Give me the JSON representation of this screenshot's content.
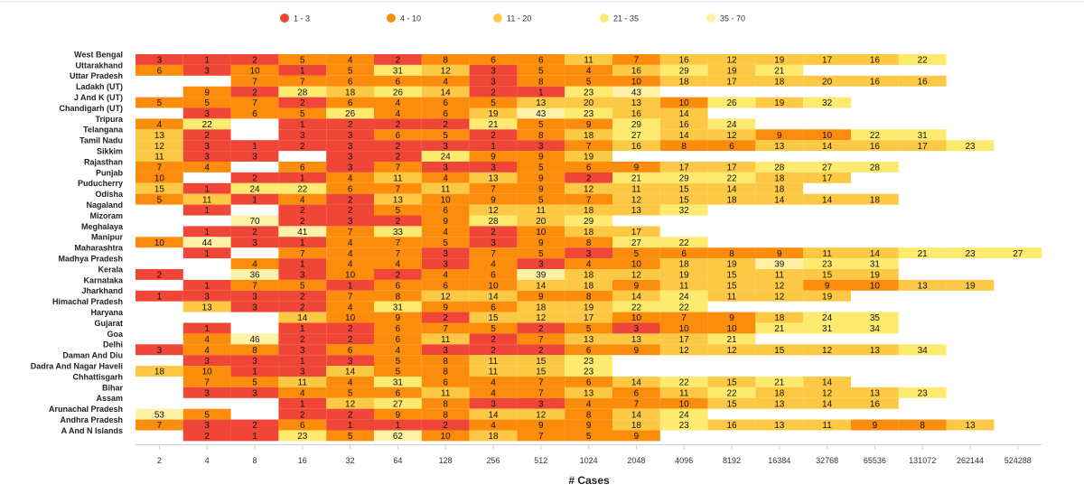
{
  "chart_data": {
    "type": "heatmap",
    "x_label": "# Cases",
    "x": [
      2,
      4,
      8,
      16,
      32,
      64,
      128,
      256,
      512,
      1024,
      2048,
      4096,
      8192,
      16384,
      32768,
      65536,
      131072,
      262144,
      524288
    ],
    "y": [
      "West Bengal",
      "Uttarakhand",
      "Uttar Pradesh",
      "Ladakh (UT)",
      "J And K (UT)",
      "Chandigarh (UT)",
      "Tripura",
      "Telangana",
      "Tamil Nadu",
      "Sikkim",
      "Rajasthan",
      "Punjab",
      "Puducherry",
      "Odisha",
      "Nagaland",
      "Mizoram",
      "Meghalaya",
      "Manipur",
      "Maharashtra",
      "Madhya Pradesh",
      "Kerala",
      "Karnataka",
      "Jharkhand",
      "Himachal Pradesh",
      "Haryana",
      "Gujarat",
      "Goa",
      "Delhi",
      "Daman And Diu",
      "Dadra And Nagar Haveli",
      "Chhattisgarh",
      "Bihar",
      "Assam",
      "Arunachal Pradesh",
      "Andhra Pradesh",
      "A And N Islands"
    ],
    "values": [
      [
        3,
        1,
        2,
        5,
        4,
        2,
        8,
        6,
        6,
        11,
        7,
        16,
        12,
        19,
        17,
        16,
        22,
        null,
        null
      ],
      [
        6,
        3,
        10,
        1,
        5,
        31,
        12,
        3,
        5,
        4,
        16,
        29,
        19,
        21,
        null,
        null,
        null,
        null,
        null
      ],
      [
        null,
        null,
        7,
        7,
        6,
        6,
        4,
        3,
        8,
        5,
        10,
        18,
        17,
        18,
        20,
        16,
        16,
        null,
        null
      ],
      [
        null,
        9,
        2,
        28,
        18,
        26,
        14,
        2,
        1,
        23,
        43,
        null,
        null,
        null,
        null,
        null,
        null,
        null,
        null
      ],
      [
        5,
        5,
        7,
        2,
        6,
        4,
        6,
        5,
        13,
        20,
        13,
        10,
        26,
        19,
        32,
        null,
        null,
        null,
        null
      ],
      [
        null,
        3,
        6,
        5,
        26,
        4,
        6,
        19,
        43,
        23,
        16,
        14,
        null,
        null,
        null,
        null,
        null,
        null,
        null
      ],
      [
        4,
        22,
        null,
        1,
        2,
        2,
        2,
        21,
        5,
        9,
        29,
        16,
        24,
        null,
        null,
        null,
        null,
        null,
        null
      ],
      [
        13,
        2,
        null,
        3,
        3,
        6,
        5,
        2,
        8,
        18,
        27,
        14,
        12,
        9,
        10,
        22,
        31,
        null,
        null
      ],
      [
        12,
        3,
        1,
        2,
        3,
        2,
        3,
        1,
        3,
        7,
        16,
        8,
        6,
        13,
        14,
        16,
        17,
        23,
        null
      ],
      [
        11,
        3,
        3,
        null,
        3,
        2,
        24,
        9,
        9,
        19,
        null,
        null,
        null,
        null,
        null,
        null,
        null,
        null,
        null
      ],
      [
        7,
        4,
        null,
        6,
        3,
        7,
        3,
        3,
        5,
        6,
        9,
        17,
        17,
        28,
        27,
        28,
        null,
        null,
        null
      ],
      [
        10,
        null,
        2,
        1,
        4,
        11,
        4,
        13,
        9,
        2,
        21,
        29,
        22,
        18,
        17,
        null,
        null,
        null,
        null
      ],
      [
        15,
        1,
        24,
        22,
        6,
        7,
        11,
        7,
        9,
        12,
        11,
        15,
        14,
        18,
        null,
        null,
        null,
        null,
        null
      ],
      [
        5,
        11,
        1,
        4,
        2,
        13,
        10,
        9,
        5,
        7,
        12,
        15,
        18,
        14,
        14,
        18,
        null,
        null,
        null
      ],
      [
        null,
        1,
        null,
        2,
        2,
        5,
        6,
        12,
        11,
        18,
        13,
        32,
        null,
        null,
        null,
        null,
        null,
        null,
        null
      ],
      [
        null,
        null,
        70,
        2,
        3,
        2,
        9,
        28,
        20,
        29,
        null,
        null,
        null,
        null,
        null,
        null,
        null,
        null,
        null
      ],
      [
        null,
        1,
        2,
        41,
        7,
        33,
        4,
        2,
        10,
        18,
        17,
        null,
        null,
        null,
        null,
        null,
        null,
        null,
        null
      ],
      [
        10,
        44,
        3,
        1,
        4,
        7,
        5,
        3,
        9,
        8,
        27,
        22,
        null,
        null,
        null,
        null,
        null,
        null,
        null
      ],
      [
        null,
        1,
        null,
        7,
        4,
        7,
        3,
        7,
        5,
        3,
        5,
        6,
        8,
        9,
        11,
        14,
        21,
        23,
        27
      ],
      [
        null,
        null,
        4,
        1,
        4,
        4,
        3,
        4,
        3,
        4,
        10,
        18,
        19,
        39,
        23,
        31,
        null,
        null,
        null
      ],
      [
        2,
        null,
        36,
        3,
        10,
        2,
        4,
        6,
        39,
        18,
        12,
        19,
        15,
        11,
        15,
        19,
        null,
        null,
        null
      ],
      [
        null,
        1,
        7,
        5,
        1,
        6,
        6,
        10,
        14,
        18,
        9,
        11,
        15,
        12,
        9,
        10,
        13,
        19,
        null
      ],
      [
        1,
        3,
        3,
        2,
        7,
        8,
        12,
        14,
        9,
        8,
        14,
        24,
        11,
        12,
        19,
        null,
        null,
        null,
        null
      ],
      [
        null,
        13,
        3,
        2,
        4,
        31,
        9,
        6,
        18,
        19,
        22,
        22,
        null,
        null,
        null,
        null,
        null,
        null,
        null
      ],
      [
        null,
        null,
        null,
        14,
        10,
        9,
        2,
        15,
        12,
        17,
        10,
        7,
        9,
        18,
        24,
        35,
        null,
        null,
        null
      ],
      [
        null,
        1,
        null,
        1,
        2,
        6,
        7,
        5,
        2,
        5,
        3,
        10,
        10,
        21,
        31,
        34,
        null,
        null,
        null
      ],
      [
        null,
        4,
        46,
        2,
        2,
        6,
        11,
        2,
        7,
        13,
        13,
        17,
        21,
        null,
        null,
        null,
        null,
        null,
        null
      ],
      [
        3,
        4,
        8,
        3,
        6,
        4,
        3,
        2,
        2,
        6,
        9,
        12,
        12,
        15,
        12,
        13,
        34,
        null,
        null
      ],
      [
        null,
        3,
        3,
        1,
        3,
        5,
        8,
        11,
        15,
        23,
        null,
        null,
        null,
        null,
        null,
        null,
        null,
        null,
        null
      ],
      [
        18,
        10,
        1,
        3,
        14,
        5,
        8,
        11,
        15,
        23,
        null,
        null,
        null,
        null,
        null,
        null,
        null,
        null,
        null
      ],
      [
        null,
        7,
        5,
        11,
        4,
        31,
        6,
        4,
        7,
        6,
        14,
        22,
        15,
        21,
        14,
        null,
        null,
        null,
        null
      ],
      [
        null,
        3,
        3,
        4,
        5,
        6,
        11,
        4,
        7,
        13,
        6,
        11,
        22,
        18,
        12,
        13,
        23,
        null,
        null
      ],
      [
        null,
        null,
        null,
        1,
        12,
        27,
        8,
        3,
        3,
        4,
        7,
        10,
        15,
        13,
        14,
        16,
        null,
        null,
        null
      ],
      [
        53,
        5,
        null,
        2,
        2,
        9,
        8,
        14,
        12,
        8,
        14,
        24,
        null,
        null,
        null,
        null,
        null,
        null,
        null
      ],
      [
        7,
        3,
        2,
        6,
        1,
        1,
        2,
        4,
        9,
        9,
        18,
        23,
        16,
        13,
        11,
        9,
        8,
        13,
        null
      ],
      [
        null,
        2,
        1,
        23,
        5,
        62,
        10,
        18,
        7,
        5,
        9,
        null,
        null,
        null,
        null,
        null,
        null,
        null,
        null
      ]
    ],
    "legend": [
      {
        "label": "1 - 3",
        "min": 1,
        "max": 3,
        "color": "#ef4638"
      },
      {
        "label": "4 - 10",
        "min": 4,
        "max": 10,
        "color": "#fb8c0c"
      },
      {
        "label": "11 - 20",
        "min": 11,
        "max": 20,
        "color": "#fdc945"
      },
      {
        "label": "21 - 35",
        "min": 21,
        "max": 35,
        "color": "#feea6e"
      },
      {
        "label": "35 - 70",
        "min": 35,
        "max": 70,
        "color": "#fff2a6"
      }
    ]
  }
}
